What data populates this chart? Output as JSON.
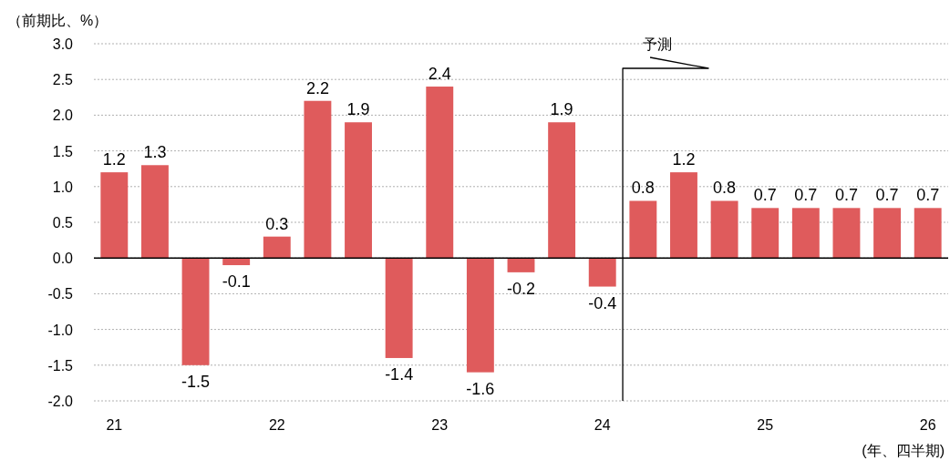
{
  "chart_data": {
    "type": "bar",
    "ylabel": "（前期比、%）",
    "xlabel": "(年、四半期)",
    "categories": [
      "21",
      null,
      null,
      null,
      "22",
      null,
      null,
      null,
      "23",
      null,
      null,
      null,
      "24",
      null,
      null,
      null,
      "25",
      null,
      null,
      null,
      "26"
    ],
    "values": [
      1.2,
      1.3,
      -1.5,
      -0.1,
      0.3,
      2.2,
      1.9,
      -1.4,
      2.4,
      -1.6,
      -0.2,
      1.9,
      -0.4,
      0.8,
      1.2,
      0.8,
      0.7,
      0.7,
      0.7,
      0.7,
      0.7
    ],
    "color": "#df5b5c",
    "data_labels": true,
    "ylim": [
      -2.0,
      3.0
    ],
    "yticks": [
      {
        "value": -2.0,
        "label": "-2.0"
      },
      {
        "value": -1.5,
        "label": "-1.5"
      },
      {
        "value": -1.0,
        "label": "-1.0"
      },
      {
        "value": -0.5,
        "label": "-0.5"
      },
      {
        "value": 0,
        "label": "0.0"
      },
      {
        "value": 0.5,
        "label": "0.5"
      },
      {
        "value": 1.0,
        "label": "1.0"
      },
      {
        "value": 1.5,
        "label": "1.5"
      },
      {
        "value": 2.0,
        "label": "2.0"
      },
      {
        "value": 2.5,
        "label": "2.5"
      },
      {
        "value": 3.0,
        "label": "3.0"
      }
    ],
    "grid": "y",
    "annotations": [
      "予測"
    ]
  }
}
